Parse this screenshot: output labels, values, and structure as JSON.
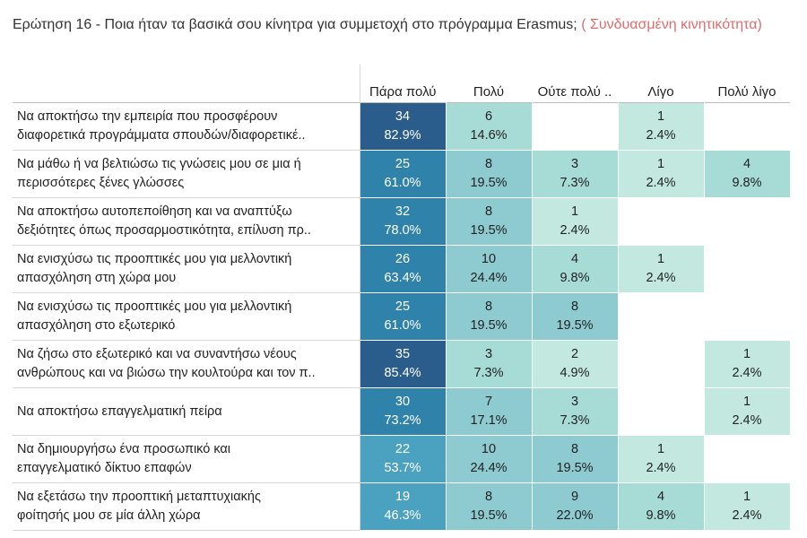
{
  "title": {
    "main": "Ερώτηση 16 - Ποια ήταν τα βασικά σου κίνητρα για συμμετοχή στο πρόγραμμα Erasmus; ",
    "accent": "( Συνδυασμένη κινητικότητα)"
  },
  "colors": {
    "scale": [
      "#ffffff",
      "#c2e8e0",
      "#a7dbd6",
      "#8dcbd0",
      "#4aa2c0",
      "#2f82aa",
      "#2a5d8c"
    ],
    "text_dark": "#ffffff",
    "text_light": "#222222"
  },
  "chart_data": {
    "type": "table",
    "title": "Ερώτηση 16 - Ποια ήταν τα βασικά σου κίνητρα για συμμετοχή στο πρόγραμμα Erasmus; ( Συνδυασμένη κινητικότητα)",
    "columns": [
      "Πάρα πολύ",
      "Πολύ",
      "Ούτε πολύ ..",
      "Λίγο",
      "Πολύ λίγο"
    ],
    "rows": [
      {
        "label_lines": [
          "Να αποκτήσω την εμπειρία που προσφέρουν",
          "διαφορετικά προγράμματα σπουδών/διαφορετικέ.."
        ],
        "cells": [
          {
            "count": "34",
            "pct": "82.9%"
          },
          {
            "count": "6",
            "pct": "14.6%"
          },
          null,
          {
            "count": "1",
            "pct": "2.4%"
          },
          null
        ]
      },
      {
        "label_lines": [
          "Να μάθω ή να βελτιώσω τις γνώσεις μου σε μια ή",
          "περισσότερες ξένες γλώσσες"
        ],
        "cells": [
          {
            "count": "25",
            "pct": "61.0%"
          },
          {
            "count": "8",
            "pct": "19.5%"
          },
          {
            "count": "3",
            "pct": "7.3%"
          },
          {
            "count": "1",
            "pct": "2.4%"
          },
          {
            "count": "4",
            "pct": "9.8%"
          }
        ]
      },
      {
        "label_lines": [
          "Να αποκτήσω αυτοπεποίθηση και να αναπτύξω",
          "δεξιότητες όπως προσαρμοστικότητα, επίλυση πρ.."
        ],
        "cells": [
          {
            "count": "32",
            "pct": "78.0%"
          },
          {
            "count": "8",
            "pct": "19.5%"
          },
          {
            "count": "1",
            "pct": "2.4%"
          },
          null,
          null
        ]
      },
      {
        "label_lines": [
          "Να ενισχύσω τις προοπτικές μου για μελλοντική",
          "απασχόληση στη χώρα μου"
        ],
        "cells": [
          {
            "count": "26",
            "pct": "63.4%"
          },
          {
            "count": "10",
            "pct": "24.4%"
          },
          {
            "count": "4",
            "pct": "9.8%"
          },
          {
            "count": "1",
            "pct": "2.4%"
          },
          null
        ]
      },
      {
        "label_lines": [
          "Να ενισχύσω τις προοπτικές μου για μελλοντική",
          "απασχόληση στο εξωτερικό"
        ],
        "cells": [
          {
            "count": "25",
            "pct": "61.0%"
          },
          {
            "count": "8",
            "pct": "19.5%"
          },
          {
            "count": "8",
            "pct": "19.5%"
          },
          null,
          null
        ]
      },
      {
        "label_lines": [
          "Να ζήσω στο εξωτερικό και να συναντήσω νέους",
          "ανθρώπους και να βιώσω την κουλτούρα και τον π.."
        ],
        "cells": [
          {
            "count": "35",
            "pct": "85.4%"
          },
          {
            "count": "3",
            "pct": "7.3%"
          },
          {
            "count": "2",
            "pct": "4.9%"
          },
          null,
          {
            "count": "1",
            "pct": "2.4%"
          }
        ]
      },
      {
        "label_lines": [
          "Να αποκτήσω επαγγελματική πείρα"
        ],
        "cells": [
          {
            "count": "30",
            "pct": "73.2%"
          },
          {
            "count": "7",
            "pct": "17.1%"
          },
          {
            "count": "3",
            "pct": "7.3%"
          },
          null,
          {
            "count": "1",
            "pct": "2.4%"
          }
        ]
      },
      {
        "label_lines": [
          "Να δημιουργήσω  ένα προσωπικό και",
          "επαγγελματικό δίκτυο επαφών"
        ],
        "cells": [
          {
            "count": "22",
            "pct": "53.7%"
          },
          {
            "count": "10",
            "pct": "24.4%"
          },
          {
            "count": "8",
            "pct": "19.5%"
          },
          {
            "count": "1",
            "pct": "2.4%"
          },
          null
        ]
      },
      {
        "label_lines": [
          "Να εξετάσω την προοπτική μεταπτυχιακής",
          "φοίτησής μου σε μία άλλη χώρα"
        ],
        "cells": [
          {
            "count": "19",
            "pct": "46.3%"
          },
          {
            "count": "8",
            "pct": "19.5%"
          },
          {
            "count": "9",
            "pct": "22.0%"
          },
          {
            "count": "4",
            "pct": "9.8%"
          },
          {
            "count": "1",
            "pct": "2.4%"
          }
        ]
      }
    ]
  }
}
